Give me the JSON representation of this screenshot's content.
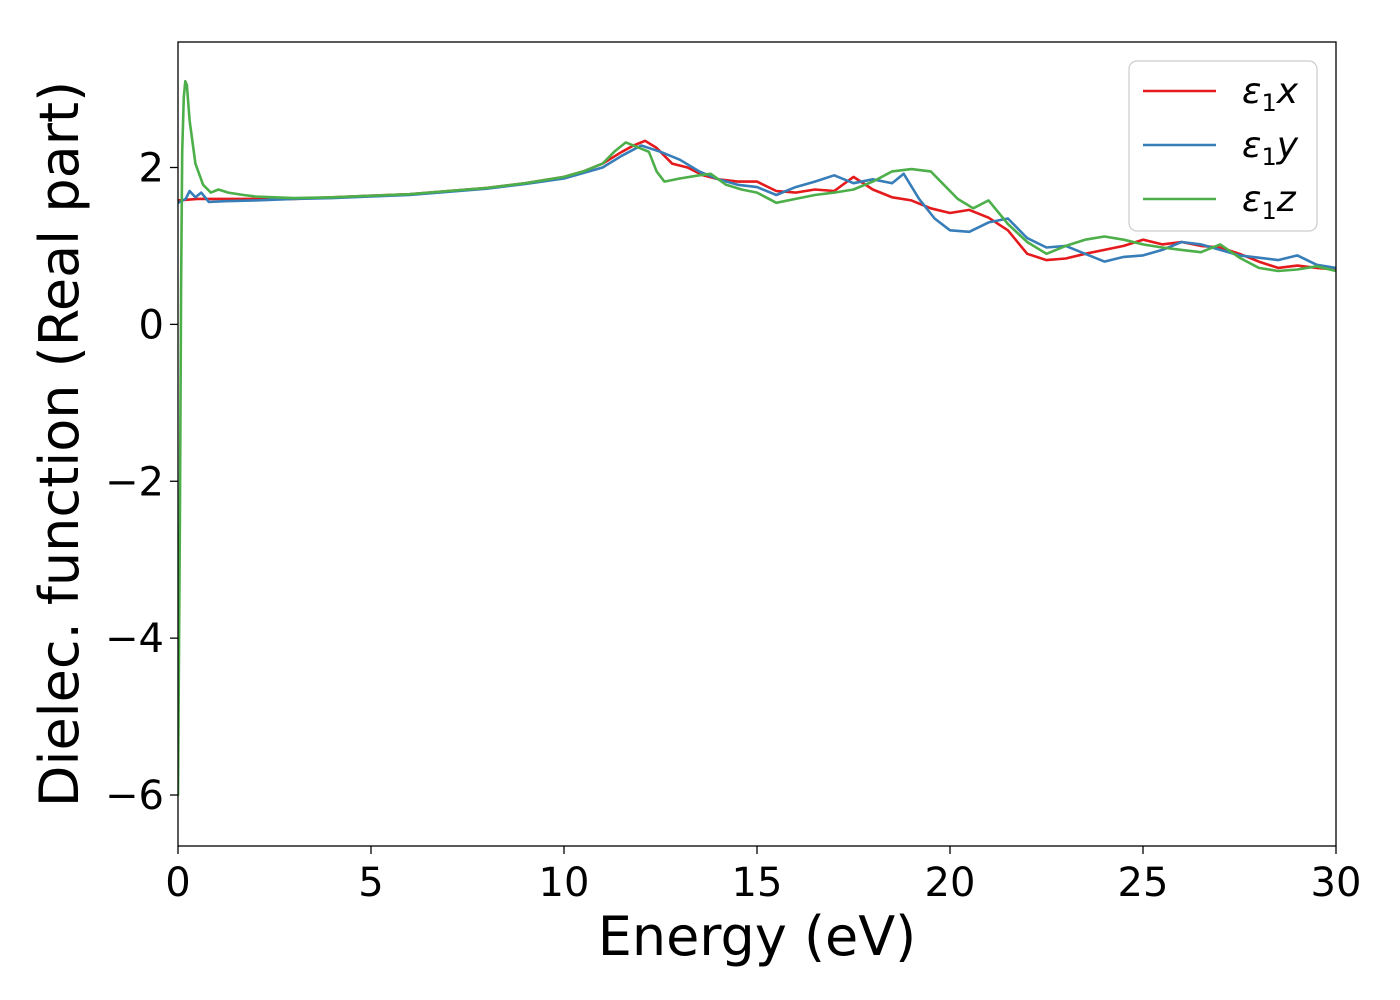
{
  "chart_data": {
    "type": "line",
    "title": "",
    "xlabel": "Energy (eV)",
    "ylabel": "Dielec. function (Real part)",
    "xlim": [
      0,
      30
    ],
    "ylim": [
      -6.65,
      3.6
    ],
    "x_ticks": [
      0,
      5,
      10,
      15,
      20,
      25,
      30
    ],
    "y_ticks": [
      -6,
      -4,
      -2,
      0,
      2
    ],
    "x_tick_labels": [
      "0",
      "5",
      "10",
      "15",
      "20",
      "25",
      "30"
    ],
    "y_tick_labels": [
      "−6",
      "−4",
      "−2",
      "0",
      "2"
    ],
    "grid": false,
    "legend_position": "top-right",
    "series": [
      {
        "name": "ε₁x",
        "name_parts": {
          "symbol": "ε",
          "sub": "1",
          "axis": "x"
        },
        "color": "#e41a1c",
        "points": [
          [
            0,
            1.58
          ],
          [
            0.5,
            1.6
          ],
          [
            1,
            1.6
          ],
          [
            2,
            1.6
          ],
          [
            3,
            1.6
          ],
          [
            4,
            1.62
          ],
          [
            5,
            1.64
          ],
          [
            6,
            1.66
          ],
          [
            7,
            1.7
          ],
          [
            8,
            1.74
          ],
          [
            9,
            1.8
          ],
          [
            10,
            1.88
          ],
          [
            10.5,
            1.95
          ],
          [
            11,
            2.05
          ],
          [
            11.5,
            2.2
          ],
          [
            11.8,
            2.28
          ],
          [
            12.1,
            2.34
          ],
          [
            12.4,
            2.25
          ],
          [
            12.8,
            2.05
          ],
          [
            13.2,
            2.0
          ],
          [
            13.6,
            1.9
          ],
          [
            14,
            1.85
          ],
          [
            14.5,
            1.82
          ],
          [
            15,
            1.82
          ],
          [
            15.5,
            1.7
          ],
          [
            16,
            1.68
          ],
          [
            16.5,
            1.72
          ],
          [
            17,
            1.7
          ],
          [
            17.5,
            1.88
          ],
          [
            18,
            1.72
          ],
          [
            18.5,
            1.62
          ],
          [
            19,
            1.58
          ],
          [
            19.5,
            1.48
          ],
          [
            20,
            1.42
          ],
          [
            20.5,
            1.46
          ],
          [
            21,
            1.36
          ],
          [
            21.5,
            1.2
          ],
          [
            22,
            0.9
          ],
          [
            22.5,
            0.82
          ],
          [
            23,
            0.84
          ],
          [
            23.5,
            0.9
          ],
          [
            24,
            0.95
          ],
          [
            24.5,
            1.0
          ],
          [
            25,
            1.08
          ],
          [
            25.5,
            1.02
          ],
          [
            26,
            1.05
          ],
          [
            26.5,
            1.0
          ],
          [
            27,
            0.98
          ],
          [
            27.5,
            0.9
          ],
          [
            28,
            0.8
          ],
          [
            28.5,
            0.72
          ],
          [
            29,
            0.75
          ],
          [
            29.5,
            0.72
          ],
          [
            30,
            0.7
          ]
        ]
      },
      {
        "name": "ε₁y",
        "name_parts": {
          "symbol": "ε",
          "sub": "1",
          "axis": "y"
        },
        "color": "#377eb8",
        "points": [
          [
            0,
            1.55
          ],
          [
            0.2,
            1.6
          ],
          [
            0.3,
            1.7
          ],
          [
            0.45,
            1.62
          ],
          [
            0.6,
            1.68
          ],
          [
            0.8,
            1.56
          ],
          [
            1.2,
            1.57
          ],
          [
            2,
            1.58
          ],
          [
            3,
            1.6
          ],
          [
            4,
            1.61
          ],
          [
            5,
            1.63
          ],
          [
            6,
            1.65
          ],
          [
            7,
            1.69
          ],
          [
            8,
            1.73
          ],
          [
            9,
            1.79
          ],
          [
            10,
            1.86
          ],
          [
            10.5,
            1.93
          ],
          [
            11,
            2.0
          ],
          [
            11.5,
            2.15
          ],
          [
            12,
            2.28
          ],
          [
            12.5,
            2.2
          ],
          [
            13,
            2.1
          ],
          [
            13.5,
            1.95
          ],
          [
            14,
            1.85
          ],
          [
            14.5,
            1.78
          ],
          [
            15,
            1.75
          ],
          [
            15.5,
            1.65
          ],
          [
            16,
            1.75
          ],
          [
            16.5,
            1.82
          ],
          [
            17,
            1.9
          ],
          [
            17.5,
            1.8
          ],
          [
            18,
            1.85
          ],
          [
            18.5,
            1.8
          ],
          [
            18.8,
            1.92
          ],
          [
            19.2,
            1.6
          ],
          [
            19.6,
            1.35
          ],
          [
            20,
            1.2
          ],
          [
            20.5,
            1.18
          ],
          [
            21,
            1.3
          ],
          [
            21.5,
            1.35
          ],
          [
            22,
            1.1
          ],
          [
            22.5,
            0.98
          ],
          [
            23,
            1.0
          ],
          [
            23.5,
            0.9
          ],
          [
            24,
            0.8
          ],
          [
            24.5,
            0.86
          ],
          [
            25,
            0.88
          ],
          [
            25.5,
            0.95
          ],
          [
            26,
            1.05
          ],
          [
            26.5,
            1.02
          ],
          [
            27,
            0.95
          ],
          [
            27.5,
            0.88
          ],
          [
            28,
            0.85
          ],
          [
            28.5,
            0.82
          ],
          [
            29,
            0.88
          ],
          [
            29.5,
            0.76
          ],
          [
            30,
            0.72
          ]
        ]
      },
      {
        "name": "ε₁z",
        "name_parts": {
          "symbol": "ε",
          "sub": "1",
          "axis": "z"
        },
        "color": "#4daf4a",
        "points": [
          [
            0.0,
            -6.0
          ],
          [
            0.05,
            -2.5
          ],
          [
            0.08,
            0.5
          ],
          [
            0.11,
            2.2
          ],
          [
            0.15,
            2.9
          ],
          [
            0.19,
            3.1
          ],
          [
            0.23,
            3.05
          ],
          [
            0.3,
            2.6
          ],
          [
            0.45,
            2.05
          ],
          [
            0.65,
            1.78
          ],
          [
            0.85,
            1.68
          ],
          [
            1.05,
            1.72
          ],
          [
            1.3,
            1.68
          ],
          [
            1.7,
            1.65
          ],
          [
            2,
            1.63
          ],
          [
            2.5,
            1.62
          ],
          [
            3,
            1.61
          ],
          [
            4,
            1.62
          ],
          [
            5,
            1.64
          ],
          [
            6,
            1.66
          ],
          [
            7,
            1.7
          ],
          [
            8,
            1.74
          ],
          [
            9,
            1.8
          ],
          [
            10,
            1.88
          ],
          [
            10.5,
            1.95
          ],
          [
            11,
            2.05
          ],
          [
            11.3,
            2.2
          ],
          [
            11.6,
            2.32
          ],
          [
            11.9,
            2.26
          ],
          [
            12.2,
            2.2
          ],
          [
            12.4,
            1.95
          ],
          [
            12.6,
            1.82
          ],
          [
            13,
            1.86
          ],
          [
            13.5,
            1.9
          ],
          [
            13.8,
            1.92
          ],
          [
            14.2,
            1.78
          ],
          [
            14.6,
            1.72
          ],
          [
            15,
            1.68
          ],
          [
            15.5,
            1.55
          ],
          [
            16,
            1.6
          ],
          [
            16.5,
            1.65
          ],
          [
            17,
            1.68
          ],
          [
            17.5,
            1.72
          ],
          [
            18,
            1.82
          ],
          [
            18.5,
            1.95
          ],
          [
            19,
            1.98
          ],
          [
            19.5,
            1.95
          ],
          [
            19.8,
            1.8
          ],
          [
            20.2,
            1.6
          ],
          [
            20.6,
            1.48
          ],
          [
            21,
            1.58
          ],
          [
            21.5,
            1.28
          ],
          [
            22,
            1.05
          ],
          [
            22.5,
            0.9
          ],
          [
            23,
            1.0
          ],
          [
            23.5,
            1.08
          ],
          [
            24,
            1.12
          ],
          [
            24.5,
            1.08
          ],
          [
            25,
            1.02
          ],
          [
            25.5,
            0.98
          ],
          [
            26,
            0.95
          ],
          [
            26.5,
            0.92
          ],
          [
            27,
            1.02
          ],
          [
            27.5,
            0.85
          ],
          [
            28,
            0.72
          ],
          [
            28.5,
            0.68
          ],
          [
            29,
            0.7
          ],
          [
            29.5,
            0.74
          ],
          [
            30,
            0.68
          ]
        ]
      }
    ]
  }
}
